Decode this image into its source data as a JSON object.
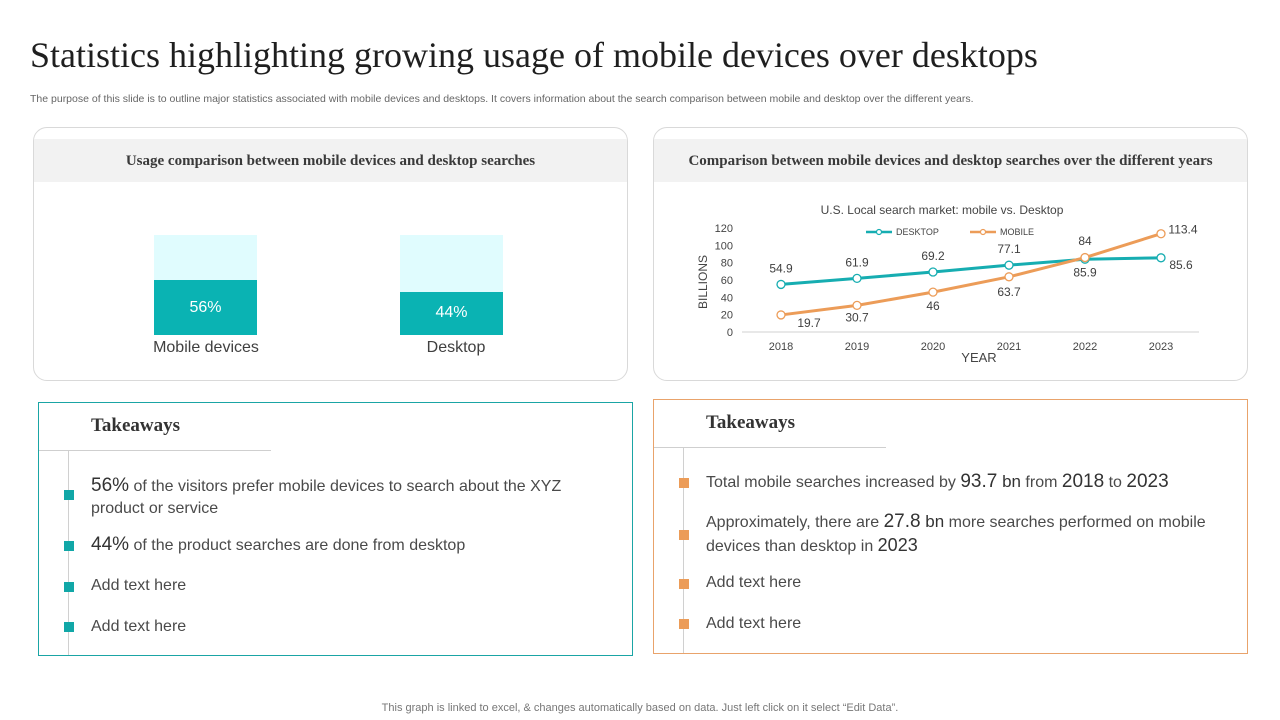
{
  "title": "Statistics highlighting growing usage of mobile devices over desktops",
  "subtitle": "The purpose of this slide is to outline major statistics associated with mobile devices and desktops. It covers information about the search comparison between mobile and desktop over the different years.",
  "left_panel": {
    "heading": "Usage comparison between mobile devices and desktop searches"
  },
  "right_panel": {
    "heading": "Comparison between mobile devices and desktop searches over the different years"
  },
  "chart_data": [
    {
      "type": "bar",
      "categories": [
        "Mobile devices",
        "Desktop"
      ],
      "values": [
        56,
        44
      ],
      "value_labels": [
        "56%",
        "44%"
      ],
      "ylim": [
        0,
        100
      ]
    },
    {
      "type": "line",
      "title": "U.S. Local search market: mobile vs. Desktop",
      "xlabel": "YEAR",
      "ylabel": "BILLIONS",
      "x": [
        "2018",
        "2019",
        "2020",
        "2021",
        "2022",
        "2023"
      ],
      "ylim": [
        0,
        120
      ],
      "yticks": [
        "0",
        "20",
        "40",
        "60",
        "80",
        "100",
        "120"
      ],
      "legend": "top",
      "grid": false,
      "series": [
        {
          "name": "DESKTOP",
          "color": "#16adb1",
          "values": [
            54.9,
            61.9,
            69.2,
            77.1,
            84,
            85.6
          ],
          "labels": [
            "54.9",
            "61.9",
            "69.2",
            "77.1",
            "84",
            "85.6"
          ]
        },
        {
          "name": "MOBILE",
          "color": "#ec9c58",
          "values": [
            19.7,
            30.7,
            46,
            63.7,
            85.9,
            113.4
          ],
          "labels": [
            "19.7",
            "30.7",
            "46",
            "63.7",
            "85.9",
            "113.4"
          ]
        }
      ]
    }
  ],
  "takeaways_left": {
    "title": "Takeaways",
    "items": [
      {
        "strong": "56%",
        "text": " of the visitors prefer mobile devices to search about the XYZ product or service"
      },
      {
        "strong": "44%",
        "text": " of the product searches are done from desktop"
      },
      {
        "text": "Add text here"
      },
      {
        "text": "Add text here"
      }
    ]
  },
  "takeaways_right": {
    "title": "Takeaways",
    "item1": {
      "a": "Total mobile searches increased by ",
      "b": "93.7",
      "c": " bn",
      "d": " from ",
      "e": "2018",
      "f": " to ",
      "g": "2023"
    },
    "item2": {
      "a": "Approximately, there are ",
      "b": "27.8",
      "c": " bn",
      "d": " more searches performed on mobile devices than desktop in ",
      "e": "2023"
    },
    "item3": "Add text here",
    "item4": "Add text here"
  },
  "footnote": "This graph is linked to excel, & changes automatically based on data. Just left click on it select “Edit Data”."
}
